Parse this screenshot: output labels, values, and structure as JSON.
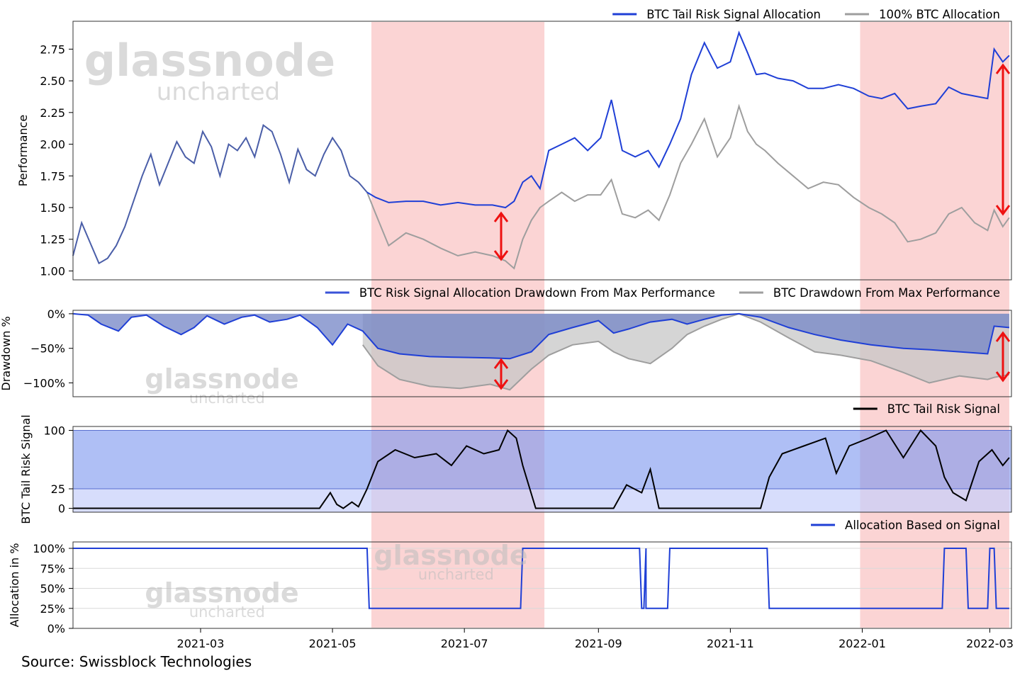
{
  "source_text": "Source: Swissblock Technologies",
  "watermark": {
    "brand": "glassnode",
    "sub": "uncharted"
  },
  "colors": {
    "signal_alloc": "#1f3fd6",
    "btc_alloc": "#9e9e9e",
    "blend": "#4a5ea8",
    "highlight": "#f9b8b8",
    "tail_line": "#000000",
    "band_high": "#7a94ef",
    "band_low": "#c6cffb",
    "arrow": "#ee1111",
    "drawdown_signal_fill": "#7384c6",
    "drawdown_btc_fill": "#c7c7c7"
  },
  "highlight_periods": [
    [
      "2021-05-19",
      "2021-08-07"
    ],
    [
      "2021-12-31",
      "2022-03-10"
    ]
  ],
  "chart_data": [
    {
      "type": "line",
      "id": "performance",
      "ylabel": "Performance",
      "ylim": [
        0.93,
        2.97
      ],
      "yticks": [
        1.0,
        1.25,
        1.5,
        1.75,
        2.0,
        2.25,
        2.5,
        2.75
      ],
      "ytick_labels": [
        "1.00",
        "1.25",
        "1.50",
        "1.75",
        "2.00",
        "2.25",
        "2.50",
        "2.75"
      ],
      "legend": "top-right",
      "series": [
        {
          "name": "BTC Tail Risk Signal Allocation",
          "x": [
            "2021-01-01",
            "2021-01-05",
            "2021-01-09",
            "2021-01-13",
            "2021-01-17",
            "2021-01-21",
            "2021-01-25",
            "2021-01-29",
            "2021-02-02",
            "2021-02-06",
            "2021-02-10",
            "2021-02-14",
            "2021-02-18",
            "2021-02-22",
            "2021-02-26",
            "2021-03-02",
            "2021-03-06",
            "2021-03-10",
            "2021-03-14",
            "2021-03-18",
            "2021-03-22",
            "2021-03-26",
            "2021-03-30",
            "2021-04-03",
            "2021-04-07",
            "2021-04-11",
            "2021-04-15",
            "2021-04-19",
            "2021-04-23",
            "2021-04-27",
            "2021-05-01",
            "2021-05-05",
            "2021-05-09",
            "2021-05-13",
            "2021-05-17",
            "2021-05-21",
            "2021-05-27",
            "2021-06-04",
            "2021-06-12",
            "2021-06-20",
            "2021-06-28",
            "2021-07-06",
            "2021-07-14",
            "2021-07-20",
            "2021-07-24",
            "2021-07-28",
            "2021-08-01",
            "2021-08-05",
            "2021-08-09",
            "2021-08-15",
            "2021-08-21",
            "2021-08-27",
            "2021-09-02",
            "2021-09-07",
            "2021-09-12",
            "2021-09-18",
            "2021-09-24",
            "2021-09-29",
            "2021-10-04",
            "2021-10-09",
            "2021-10-14",
            "2021-10-20",
            "2021-10-26",
            "2021-11-01",
            "2021-11-05",
            "2021-11-09",
            "2021-11-13",
            "2021-11-17",
            "2021-11-23",
            "2021-11-30",
            "2021-12-07",
            "2021-12-14",
            "2021-12-21",
            "2021-12-28",
            "2022-01-04",
            "2022-01-10",
            "2022-01-16",
            "2022-01-22",
            "2022-01-28",
            "2022-02-04",
            "2022-02-10",
            "2022-02-16",
            "2022-02-22",
            "2022-02-28",
            "2022-03-03",
            "2022-03-07",
            "2022-03-10"
          ],
          "values": [
            1.12,
            1.38,
            1.22,
            1.06,
            1.1,
            1.2,
            1.35,
            1.55,
            1.75,
            1.92,
            1.68,
            1.85,
            2.02,
            1.9,
            1.85,
            2.1,
            1.98,
            1.75,
            2.0,
            1.95,
            2.05,
            1.9,
            2.15,
            2.1,
            1.92,
            1.7,
            1.96,
            1.8,
            1.75,
            1.92,
            2.05,
            1.95,
            1.75,
            1.7,
            1.62,
            1.58,
            1.54,
            1.55,
            1.55,
            1.52,
            1.54,
            1.52,
            1.52,
            1.5,
            1.55,
            1.7,
            1.75,
            1.65,
            1.95,
            2.0,
            2.05,
            1.95,
            2.05,
            2.35,
            1.95,
            1.9,
            1.95,
            1.82,
            2.0,
            2.2,
            2.55,
            2.8,
            2.6,
            2.65,
            2.88,
            2.72,
            2.55,
            2.56,
            2.52,
            2.5,
            2.44,
            2.44,
            2.47,
            2.44,
            2.38,
            2.36,
            2.4,
            2.28,
            2.3,
            2.32,
            2.45,
            2.4,
            2.38,
            2.36,
            2.75,
            2.65,
            2.7
          ]
        },
        {
          "name": "100% BTC Allocation",
          "x": [
            "2021-05-17",
            "2021-05-21",
            "2021-05-27",
            "2021-06-04",
            "2021-06-12",
            "2021-06-20",
            "2021-06-28",
            "2021-07-06",
            "2021-07-14",
            "2021-07-20",
            "2021-07-24",
            "2021-07-28",
            "2021-08-01",
            "2021-08-05",
            "2021-08-09",
            "2021-08-15",
            "2021-08-21",
            "2021-08-27",
            "2021-09-02",
            "2021-09-07",
            "2021-09-12",
            "2021-09-18",
            "2021-09-24",
            "2021-09-29",
            "2021-10-04",
            "2021-10-09",
            "2021-10-14",
            "2021-10-20",
            "2021-10-26",
            "2021-11-01",
            "2021-11-05",
            "2021-11-09",
            "2021-11-13",
            "2021-11-17",
            "2021-11-23",
            "2021-11-30",
            "2021-12-07",
            "2021-12-14",
            "2021-12-21",
            "2021-12-28",
            "2022-01-04",
            "2022-01-10",
            "2022-01-16",
            "2022-01-22",
            "2022-01-28",
            "2022-02-04",
            "2022-02-10",
            "2022-02-16",
            "2022-02-22",
            "2022-02-28",
            "2022-03-03",
            "2022-03-07",
            "2022-03-10"
          ],
          "values": [
            1.62,
            1.45,
            1.2,
            1.3,
            1.25,
            1.18,
            1.12,
            1.15,
            1.12,
            1.08,
            1.02,
            1.25,
            1.4,
            1.5,
            1.55,
            1.62,
            1.55,
            1.6,
            1.6,
            1.72,
            1.45,
            1.42,
            1.48,
            1.4,
            1.6,
            1.85,
            2.0,
            2.2,
            1.9,
            2.05,
            2.3,
            2.1,
            2.0,
            1.95,
            1.85,
            1.75,
            1.65,
            1.7,
            1.68,
            1.58,
            1.5,
            1.45,
            1.38,
            1.23,
            1.25,
            1.3,
            1.45,
            1.5,
            1.38,
            1.32,
            1.48,
            1.35,
            1.42
          ]
        }
      ]
    },
    {
      "type": "area",
      "id": "drawdown",
      "ylabel": "Drawdown %",
      "ylim": [
        -120,
        5
      ],
      "yticks": [
        0,
        -50,
        -100
      ],
      "ytick_labels": [
        "0%",
        "−50%",
        "−100%"
      ],
      "legend": "top-right",
      "series": [
        {
          "name": "BTC Risk Signal Allocation Drawdown From Max Performance",
          "x": [
            "2021-01-01",
            "2021-01-08",
            "2021-01-14",
            "2021-01-22",
            "2021-01-28",
            "2021-02-04",
            "2021-02-12",
            "2021-02-20",
            "2021-02-26",
            "2021-03-04",
            "2021-03-12",
            "2021-03-20",
            "2021-03-26",
            "2021-04-02",
            "2021-04-10",
            "2021-04-16",
            "2021-04-24",
            "2021-05-01",
            "2021-05-08",
            "2021-05-15",
            "2021-05-22",
            "2021-06-01",
            "2021-06-15",
            "2021-06-29",
            "2021-07-13",
            "2021-07-22",
            "2021-08-01",
            "2021-08-09",
            "2021-08-20",
            "2021-09-01",
            "2021-09-08",
            "2021-09-15",
            "2021-09-25",
            "2021-10-05",
            "2021-10-12",
            "2021-10-20",
            "2021-10-28",
            "2021-11-05",
            "2021-11-15",
            "2021-11-28",
            "2021-12-10",
            "2021-12-22",
            "2022-01-05",
            "2022-01-20",
            "2022-02-01",
            "2022-02-15",
            "2022-02-28",
            "2022-03-03",
            "2022-03-10"
          ],
          "values": [
            0,
            -2,
            -15,
            -25,
            -5,
            -2,
            -18,
            -30,
            -20,
            -3,
            -15,
            -5,
            -2,
            -12,
            -8,
            -2,
            -20,
            -45,
            -15,
            -25,
            -50,
            -58,
            -62,
            -63,
            -64,
            -65,
            -55,
            -30,
            -20,
            -10,
            -28,
            -22,
            -12,
            -8,
            -15,
            -8,
            -2,
            0,
            -5,
            -20,
            -30,
            -38,
            -45,
            -50,
            -52,
            -55,
            -58,
            -18,
            -20
          ]
        },
        {
          "name": "BTC Drawdown From Max Performance",
          "x": [
            "2021-05-15",
            "2021-05-22",
            "2021-06-01",
            "2021-06-15",
            "2021-06-29",
            "2021-07-13",
            "2021-07-22",
            "2021-08-01",
            "2021-08-09",
            "2021-08-20",
            "2021-09-01",
            "2021-09-08",
            "2021-09-15",
            "2021-09-25",
            "2021-10-05",
            "2021-10-12",
            "2021-10-20",
            "2021-10-28",
            "2021-11-05",
            "2021-11-15",
            "2021-11-28",
            "2021-12-10",
            "2021-12-22",
            "2022-01-05",
            "2022-01-20",
            "2022-02-01",
            "2022-02-15",
            "2022-02-28",
            "2022-03-03",
            "2022-03-10"
          ],
          "values": [
            -45,
            -75,
            -95,
            -105,
            -108,
            -102,
            -110,
            -80,
            -60,
            -45,
            -40,
            -55,
            -65,
            -72,
            -50,
            -30,
            -18,
            -8,
            0,
            -12,
            -35,
            -55,
            -60,
            -68,
            -85,
            -100,
            -90,
            -95,
            -92,
            -88
          ]
        }
      ]
    },
    {
      "type": "line",
      "id": "tail_risk",
      "ylabel": "BTC Tail Risk Signal",
      "ylim": [
        -5,
        105
      ],
      "yticks": [
        0,
        25,
        100
      ],
      "ytick_labels": [
        "0",
        "25",
        "100"
      ],
      "legend": "top-right",
      "series": [
        {
          "name": "BTC Tail Risk Signal",
          "x": [
            "2021-01-01",
            "2021-04-25",
            "2021-04-30",
            "2021-05-03",
            "2021-05-06",
            "2021-05-10",
            "2021-05-13",
            "2021-05-17",
            "2021-05-22",
            "2021-05-30",
            "2021-06-08",
            "2021-06-18",
            "2021-06-25",
            "2021-07-02",
            "2021-07-10",
            "2021-07-17",
            "2021-07-21",
            "2021-07-25",
            "2021-07-28",
            "2021-08-03",
            "2021-08-20",
            "2021-09-08",
            "2021-09-14",
            "2021-09-21",
            "2021-09-25",
            "2021-09-29",
            "2021-10-04",
            "2021-10-08",
            "2021-11-15",
            "2021-11-19",
            "2021-11-25",
            "2021-12-05",
            "2021-12-15",
            "2021-12-20",
            "2021-12-26",
            "2022-01-04",
            "2022-01-12",
            "2022-01-20",
            "2022-01-28",
            "2022-02-04",
            "2022-02-08",
            "2022-02-12",
            "2022-02-18",
            "2022-02-24",
            "2022-03-02",
            "2022-03-07",
            "2022-03-10"
          ],
          "values": [
            0,
            0,
            20,
            5,
            0,
            8,
            2,
            25,
            60,
            75,
            65,
            70,
            55,
            80,
            70,
            75,
            100,
            90,
            55,
            0,
            0,
            0,
            30,
            20,
            50,
            0,
            0,
            0,
            0,
            40,
            70,
            80,
            90,
            45,
            80,
            90,
            100,
            65,
            100,
            80,
            40,
            20,
            10,
            60,
            75,
            55,
            65
          ]
        }
      ]
    },
    {
      "type": "line",
      "id": "allocation",
      "ylabel": "Allocation in %",
      "ylim": [
        0,
        108
      ],
      "yticks": [
        0,
        25,
        50,
        75,
        100
      ],
      "ytick_labels": [
        "0%",
        "25%",
        "50%",
        "75%",
        "100%"
      ],
      "legend": "top-right",
      "xtick_labels": [
        "2021-03",
        "2021-05",
        "2021-07",
        "2021-09",
        "2021-11",
        "2022-01",
        "2022-03"
      ],
      "series": [
        {
          "name": "Allocation Based on Signal",
          "x": [
            "2021-01-01",
            "2021-05-17",
            "2021-05-18",
            "2021-07-27",
            "2021-07-28",
            "2021-09-20",
            "2021-09-21",
            "2021-09-22",
            "2021-09-23",
            "2021-09-23",
            "2021-09-24",
            "2021-10-03",
            "2021-10-04",
            "2021-11-18",
            "2021-11-19",
            "2022-02-07",
            "2022-02-08",
            "2022-02-18",
            "2022-02-19",
            "2022-02-28",
            "2022-03-01",
            "2022-03-03",
            "2022-03-04",
            "2022-03-10"
          ],
          "values": [
            100,
            100,
            25,
            25,
            100,
            100,
            25,
            25,
            100,
            25,
            25,
            25,
            100,
            100,
            25,
            25,
            100,
            100,
            25,
            25,
            100,
            100,
            25,
            25
          ]
        }
      ]
    }
  ]
}
